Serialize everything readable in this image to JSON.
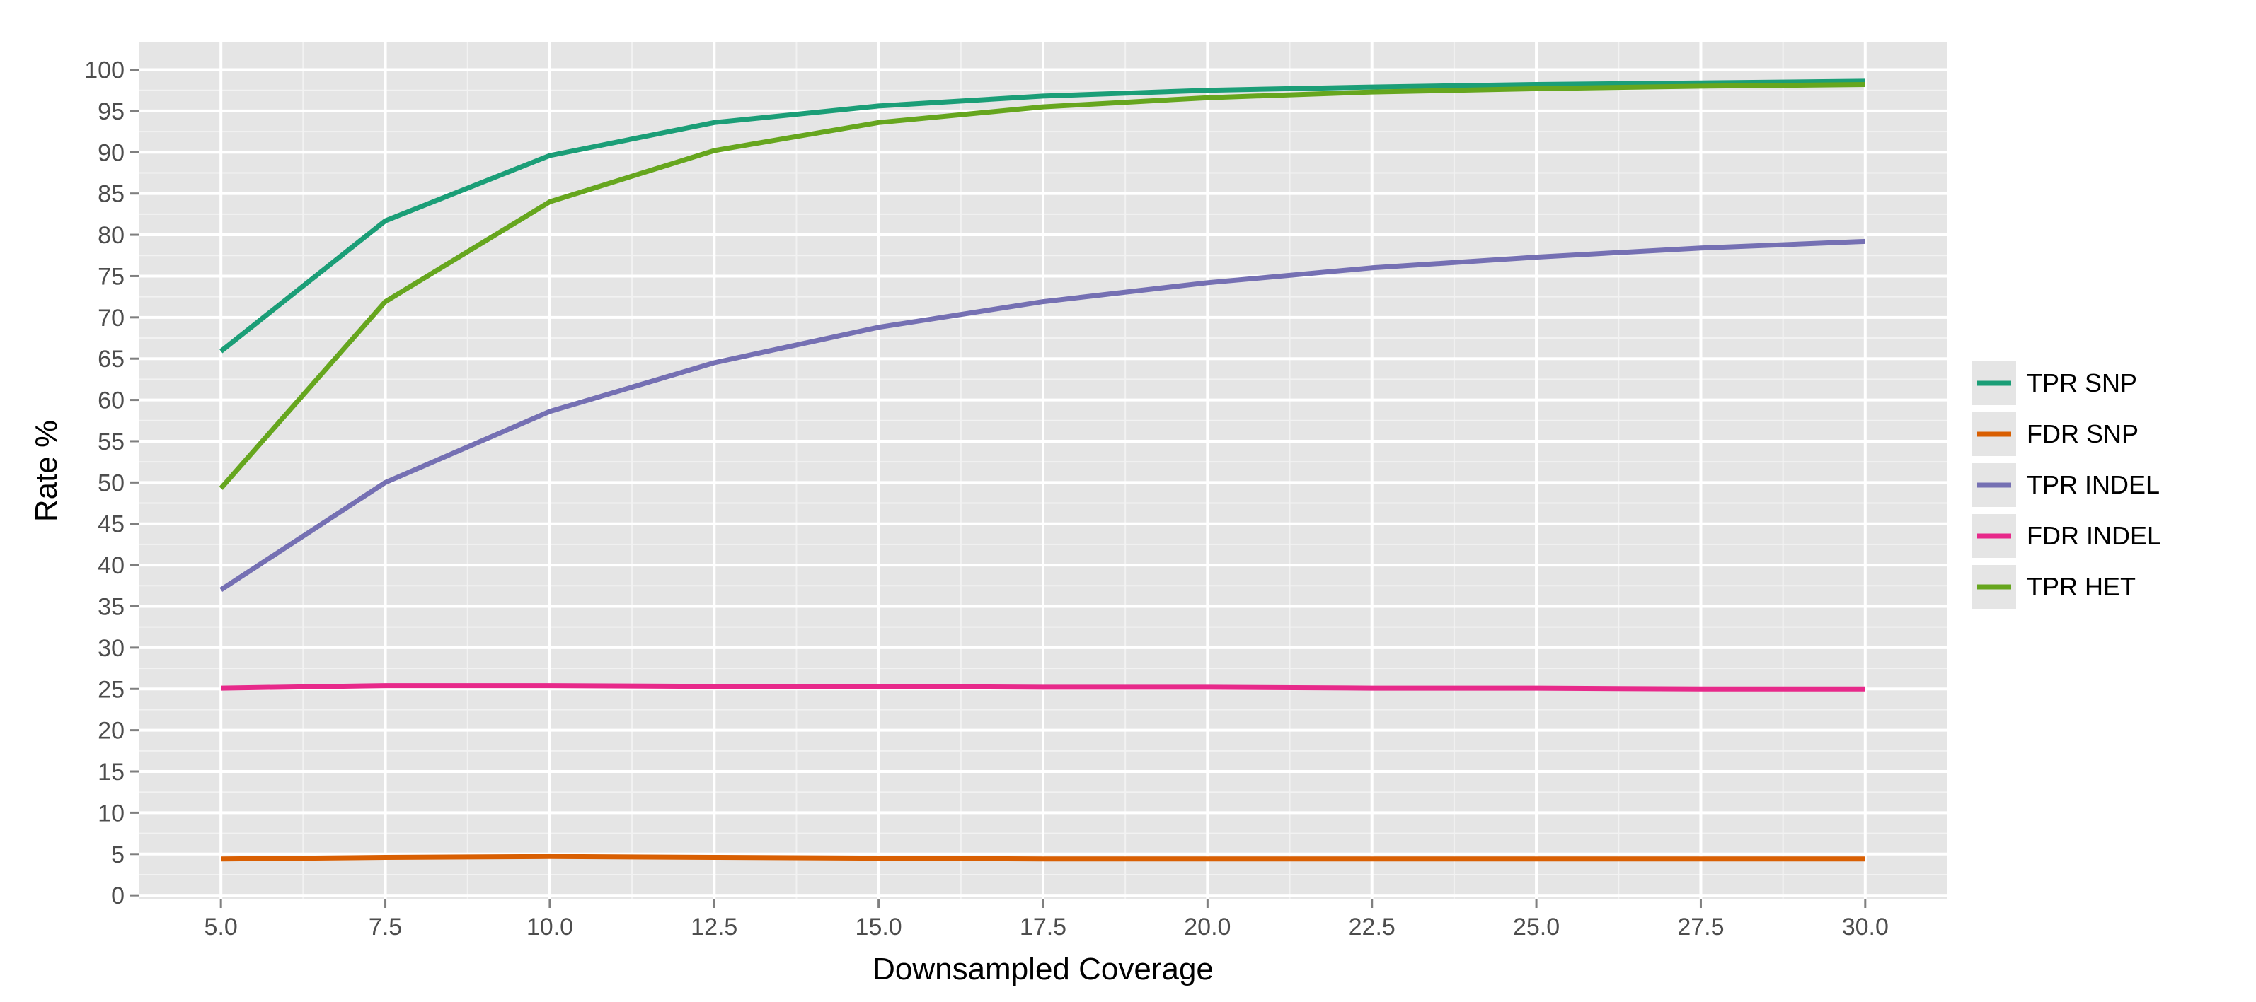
{
  "chart_data": {
    "type": "line",
    "title": "",
    "xlabel": "Downsampled Coverage",
    "ylabel": "Rate %",
    "x": [
      5.0,
      7.5,
      10.0,
      12.5,
      15.0,
      17.5,
      20.0,
      22.5,
      25.0,
      27.5,
      30.0
    ],
    "xticks": [
      "5.0",
      "7.5",
      "10.0",
      "12.5",
      "15.0",
      "17.5",
      "20.0",
      "22.5",
      "25.0",
      "27.5",
      "30.0"
    ],
    "yticks": [
      "0",
      "5",
      "10",
      "15",
      "20",
      "25",
      "30",
      "35",
      "40",
      "45",
      "50",
      "55",
      "60",
      "65",
      "70",
      "75",
      "80",
      "85",
      "90",
      "95",
      "100"
    ],
    "xlim": [
      3.75,
      31.25
    ],
    "ylim": [
      -0.5,
      103.3
    ],
    "grid": true,
    "legend_position": "right",
    "series": [
      {
        "name": "TPR SNP",
        "color": "#1b9e77",
        "values": [
          65.9,
          81.7,
          89.6,
          93.6,
          95.6,
          96.8,
          97.5,
          97.9,
          98.2,
          98.4,
          98.6
        ]
      },
      {
        "name": "FDR SNP",
        "color": "#d95f02",
        "values": [
          4.4,
          4.6,
          4.7,
          4.6,
          4.5,
          4.4,
          4.4,
          4.4,
          4.4,
          4.4,
          4.4
        ]
      },
      {
        "name": "TPR INDEL",
        "color": "#7570b3",
        "values": [
          37.0,
          50.0,
          58.6,
          64.5,
          68.8,
          71.9,
          74.2,
          76.0,
          77.3,
          78.4,
          79.2
        ]
      },
      {
        "name": "FDR INDEL",
        "color": "#e7298a",
        "values": [
          25.1,
          25.4,
          25.4,
          25.3,
          25.3,
          25.2,
          25.2,
          25.1,
          25.1,
          25.0,
          25.0
        ]
      },
      {
        "name": "TPR HET",
        "color": "#66a61e",
        "values": [
          49.3,
          71.9,
          84.0,
          90.2,
          93.6,
          95.5,
          96.6,
          97.3,
          97.7,
          98.0,
          98.2
        ]
      }
    ]
  }
}
